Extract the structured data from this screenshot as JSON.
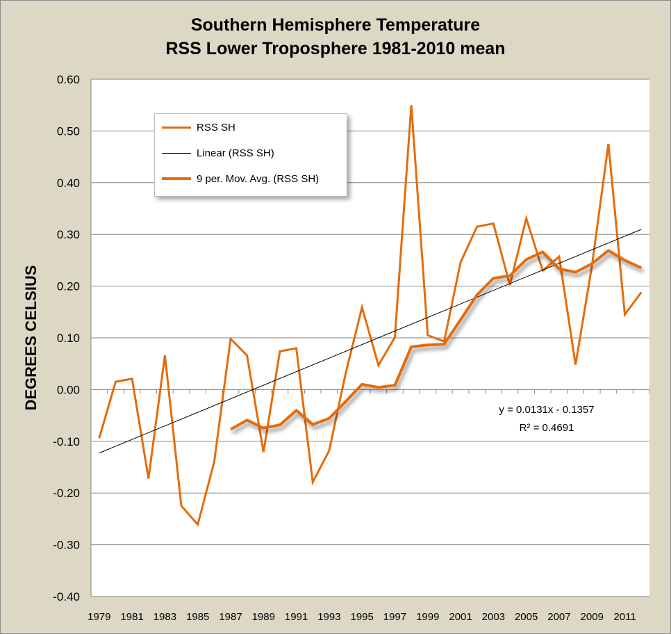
{
  "chart_data": {
    "type": "line",
    "title": [
      "Southern Hemisphere Temperature",
      "RSS Lower Troposphere 1981-2010 mean"
    ],
    "ylabel": "DEGREES CELSIUS",
    "xlabel": "",
    "ylim": [
      -0.4,
      0.6
    ],
    "ytick_labels": [
      "0.60",
      "0.50",
      "0.40",
      "0.30",
      "0.20",
      "0.10",
      "0.00",
      "-0.10",
      "-0.20",
      "-0.30",
      "-0.40"
    ],
    "xtick_labels": [
      "1979",
      "1981",
      "1983",
      "1985",
      "1987",
      "1989",
      "1991",
      "1993",
      "1995",
      "1997",
      "1999",
      "2001",
      "2003",
      "2005",
      "2007",
      "2009",
      "2011"
    ],
    "grid": true,
    "legend_position": "top-left",
    "x": [
      1979,
      1980,
      1981,
      1982,
      1983,
      1984,
      1985,
      1986,
      1987,
      1988,
      1989,
      1990,
      1991,
      1992,
      1993,
      1994,
      1995,
      1996,
      1997,
      1998,
      1999,
      2000,
      2001,
      2002,
      2003,
      2004,
      2005,
      2006,
      2007,
      2008,
      2009,
      2010,
      2011,
      2012
    ],
    "series": [
      {
        "name": "RSS SH",
        "color": "#e46c0a",
        "values": [
          -0.094,
          0.015,
          0.021,
          -0.172,
          0.066,
          -0.225,
          -0.261,
          -0.14,
          0.098,
          0.066,
          -0.121,
          0.074,
          0.08,
          -0.179,
          -0.118,
          0.031,
          0.159,
          0.047,
          0.101,
          0.55,
          0.105,
          0.093,
          0.246,
          0.315,
          0.321,
          0.202,
          0.331,
          0.23,
          0.257,
          0.048,
          0.24,
          0.475,
          0.145,
          0.188
        ]
      },
      {
        "name": "Linear (RSS SH)",
        "color": "#000000",
        "slope": 0.0131,
        "intercept": -0.1357
      },
      {
        "name": "9 per. Mov. Avg. (RSS SH)",
        "color": "#e46c0a",
        "period": 9
      }
    ],
    "annotations": [
      "y = 0.0131x - 0.1357",
      "R² = 0.4691"
    ]
  }
}
